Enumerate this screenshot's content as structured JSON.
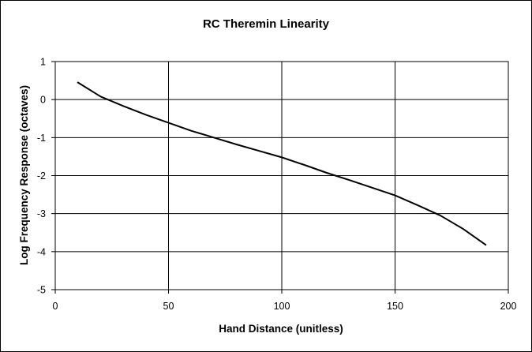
{
  "chart_data": {
    "type": "line",
    "title": "RC Theremin Linearity",
    "xlabel": "Hand Distance (unitless)",
    "ylabel": "Log Frequency Response (octaves)",
    "xlim": [
      0,
      200
    ],
    "ylim": [
      -5,
      1
    ],
    "x_ticks": [
      "0",
      "50",
      "100",
      "150",
      "200"
    ],
    "y_ticks": [
      "1",
      "0",
      "-1",
      "-2",
      "-3",
      "-4",
      "-5"
    ],
    "grid": true,
    "legend": "none",
    "series": [
      {
        "color": "#000000",
        "x": [
          10,
          20,
          30,
          40,
          50,
          60,
          70,
          80,
          90,
          100,
          110,
          120,
          130,
          140,
          150,
          160,
          170,
          180,
          190
        ],
        "y": [
          0.45,
          0.08,
          -0.17,
          -0.4,
          -0.61,
          -0.82,
          -1.0,
          -1.18,
          -1.35,
          -1.52,
          -1.72,
          -1.93,
          -2.12,
          -2.32,
          -2.52,
          -2.78,
          -3.05,
          -3.4,
          -3.82
        ]
      }
    ]
  }
}
